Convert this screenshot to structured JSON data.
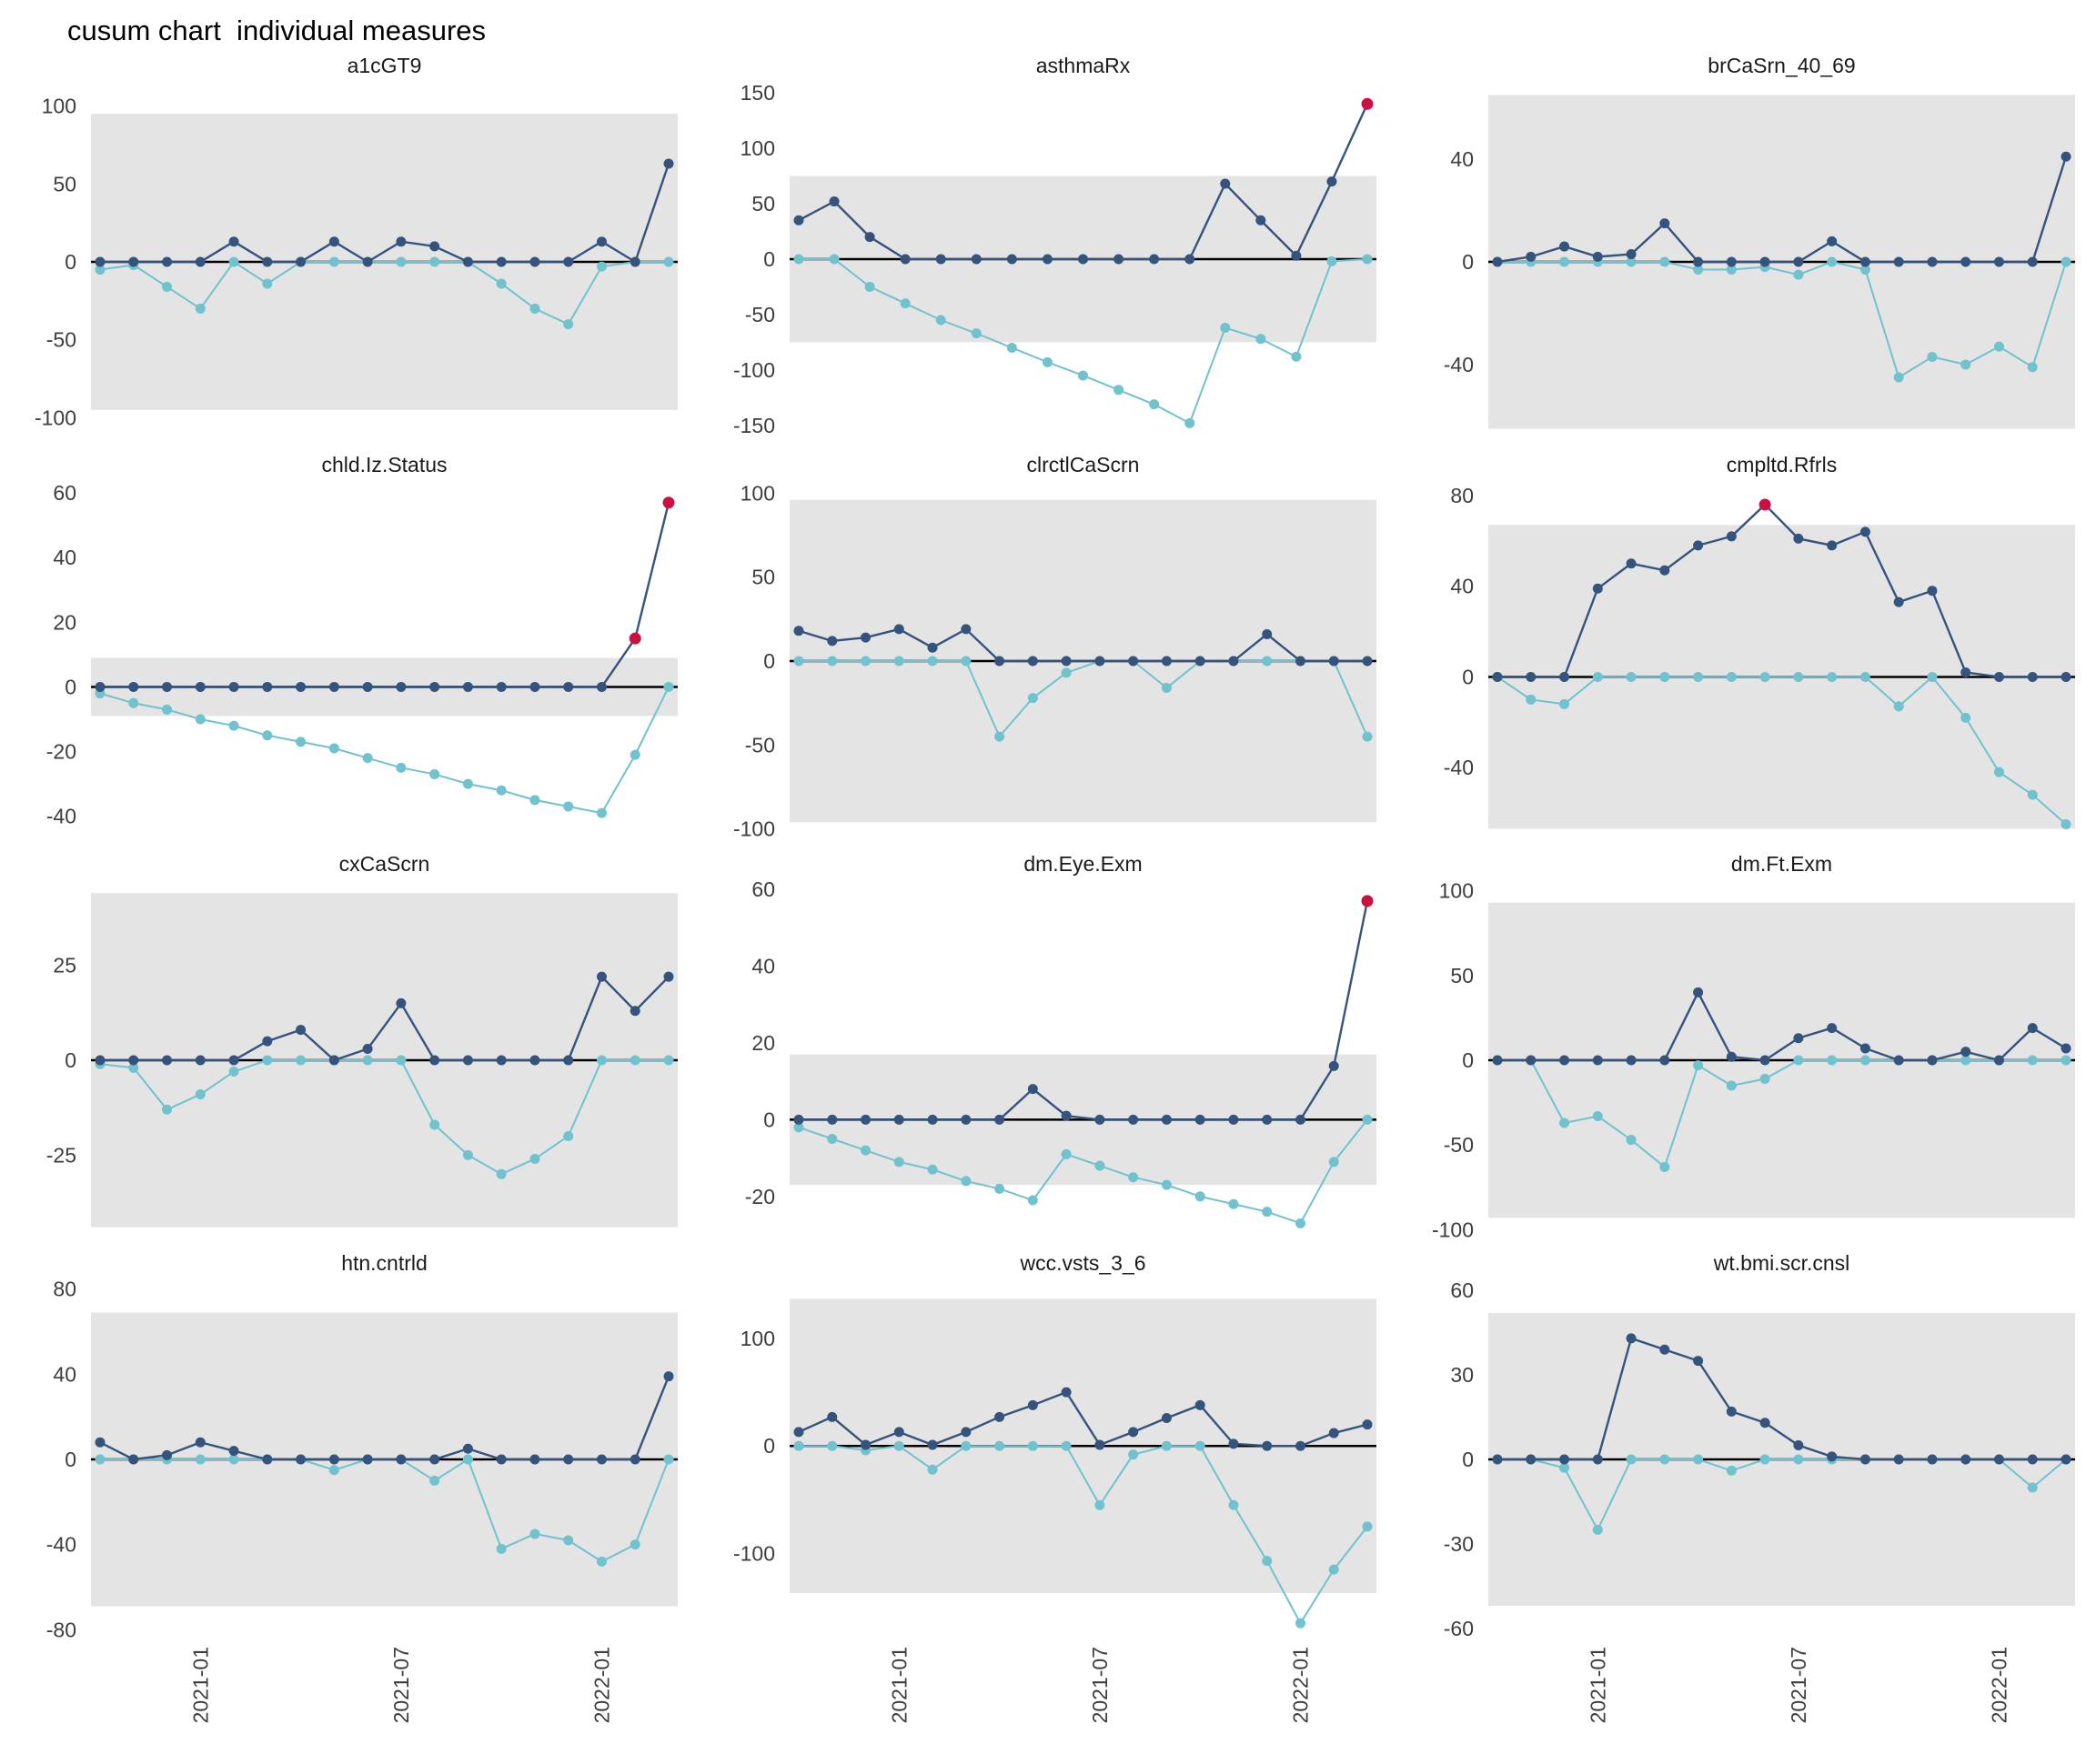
{
  "page_title": "cusum chart  individual measures",
  "x_axis": {
    "labels": [
      "2021-01",
      "2021-07",
      "2022-01"
    ]
  },
  "colors": {
    "upper_series": "#34537D",
    "lower_series": "#6FC2CE",
    "signal_point": "#CB1141",
    "band": "#E4E4E4",
    "zero_line": "#000000",
    "tick_text": "#3d3d3d",
    "title_text": "#1a1a1a"
  },
  "chart_data": [
    {
      "type": "line",
      "title": "a1cGT9",
      "ylim": [
        -112,
        112
      ],
      "yticks": [
        100,
        50,
        0,
        -50,
        -100
      ],
      "band": [
        -95,
        95
      ],
      "tick_indices": [
        3,
        9,
        15
      ],
      "series": [
        {
          "name": "upper cusum",
          "values": [
            0,
            0,
            0,
            0,
            13,
            0,
            0,
            13,
            0,
            13,
            10,
            0,
            0,
            0,
            0,
            13,
            0,
            63
          ]
        },
        {
          "name": "lower cusum",
          "values": [
            -5,
            -2,
            -16,
            -30,
            0,
            -14,
            0,
            0,
            0,
            0,
            0,
            0,
            -14,
            -30,
            -40,
            -3,
            0,
            0
          ]
        }
      ],
      "signals": []
    },
    {
      "type": "line",
      "title": "asthmaRx",
      "ylim": [
        -160,
        155
      ],
      "yticks": [
        150,
        100,
        50,
        0,
        -50,
        -100,
        -150
      ],
      "band": [
        -75,
        75
      ],
      "tick_indices": [
        2,
        8,
        14
      ],
      "series": [
        {
          "name": "upper cusum",
          "values": [
            35,
            52,
            20,
            0,
            0,
            0,
            0,
            0,
            0,
            0,
            0,
            0,
            68,
            35,
            3,
            70,
            140
          ]
        },
        {
          "name": "lower cusum",
          "values": [
            0,
            0,
            -25,
            -40,
            -55,
            -67,
            -80,
            -93,
            -105,
            -118,
            -131,
            -148,
            -62,
            -72,
            -88,
            -2,
            0
          ]
        }
      ],
      "signals": [
        16
      ]
    },
    {
      "type": "line",
      "title": "brCaSrn_40_69",
      "ylim": [
        -68,
        68
      ],
      "yticks": [
        40,
        0,
        -40
      ],
      "band": [
        -65,
        65
      ],
      "tick_indices": [
        3,
        9,
        15
      ],
      "series": [
        {
          "name": "upper cusum",
          "values": [
            0,
            2,
            6,
            2,
            3,
            15,
            0,
            0,
            0,
            0,
            8,
            0,
            0,
            0,
            0,
            0,
            0,
            41
          ]
        },
        {
          "name": "lower cusum",
          "values": [
            0,
            0,
            0,
            0,
            0,
            0,
            -3,
            -3,
            -2,
            -5,
            0,
            -3,
            -45,
            -37,
            -40,
            -33,
            -41,
            0
          ]
        }
      ],
      "signals": []
    },
    {
      "type": "line",
      "title": "chld.Iz.Status",
      "ylim": [
        -46,
        62
      ],
      "yticks": [
        60,
        40,
        20,
        0,
        -20,
        -40
      ],
      "band": [
        -9,
        9
      ],
      "tick_indices": [
        3,
        9,
        15
      ],
      "series": [
        {
          "name": "upper cusum",
          "values": [
            0,
            0,
            0,
            0,
            0,
            0,
            0,
            0,
            0,
            0,
            0,
            0,
            0,
            0,
            0,
            0,
            15,
            57
          ]
        },
        {
          "name": "lower cusum",
          "values": [
            -2,
            -5,
            -7,
            -10,
            -12,
            -15,
            -17,
            -19,
            -22,
            -25,
            -27,
            -30,
            -32,
            -35,
            -37,
            -39,
            -21,
            0
          ]
        }
      ],
      "signals": [
        16,
        17
      ]
    },
    {
      "type": "line",
      "title": "clrctlCaScrn",
      "ylim": [
        -104,
        104
      ],
      "yticks": [
        100,
        50,
        0,
        -50,
        -100
      ],
      "band": [
        -96,
        96
      ],
      "tick_indices": [
        3,
        9,
        15
      ],
      "series": [
        {
          "name": "upper cusum",
          "values": [
            18,
            12,
            14,
            19,
            8,
            19,
            0,
            0,
            0,
            0,
            0,
            0,
            0,
            0,
            16,
            0,
            0,
            0
          ]
        },
        {
          "name": "lower cusum",
          "values": [
            0,
            0,
            0,
            0,
            0,
            0,
            -45,
            -22,
            -7,
            0,
            0,
            -16,
            0,
            0,
            0,
            0,
            0,
            -45
          ]
        }
      ],
      "signals": []
    },
    {
      "type": "line",
      "title": "cmpltd.Rfrls",
      "ylim": [
        -70,
        84
      ],
      "yticks": [
        80,
        40,
        0,
        -40
      ],
      "band": [
        -67,
        67
      ],
      "tick_indices": [
        3,
        9,
        15
      ],
      "series": [
        {
          "name": "upper cusum",
          "values": [
            0,
            0,
            0,
            39,
            50,
            47,
            58,
            62,
            76,
            61,
            58,
            64,
            33,
            38,
            2,
            0,
            0,
            0
          ]
        },
        {
          "name": "lower cusum",
          "values": [
            0,
            -10,
            -12,
            0,
            0,
            0,
            0,
            0,
            0,
            0,
            0,
            0,
            -13,
            0,
            -18,
            -42,
            -52,
            -65
          ]
        }
      ],
      "signals": [
        8
      ]
    },
    {
      "type": "line",
      "title": "cxCaScrn",
      "ylim": [
        -46,
        46
      ],
      "yticks": [
        25,
        0,
        -25
      ],
      "band": [
        -44,
        44
      ],
      "tick_indices": [
        3,
        9,
        15
      ],
      "series": [
        {
          "name": "upper cusum",
          "values": [
            0,
            0,
            0,
            0,
            0,
            5,
            8,
            0,
            3,
            15,
            0,
            0,
            0,
            0,
            0,
            22,
            13,
            22
          ]
        },
        {
          "name": "lower cusum",
          "values": [
            -1,
            -2,
            -13,
            -9,
            -3,
            0,
            0,
            0,
            0,
            0,
            -17,
            -25,
            -30,
            -26,
            -20,
            0,
            0,
            0
          ]
        }
      ],
      "signals": []
    },
    {
      "type": "line",
      "title": "dm.Eye.Exm",
      "ylim": [
        -30,
        61
      ],
      "yticks": [
        60,
        40,
        20,
        0,
        -20
      ],
      "band": [
        -17,
        17
      ],
      "tick_indices": [
        3,
        9,
        15
      ],
      "series": [
        {
          "name": "upper cusum",
          "values": [
            0,
            0,
            0,
            0,
            0,
            0,
            0,
            8,
            1,
            0,
            0,
            0,
            0,
            0,
            0,
            0,
            14,
            57
          ]
        },
        {
          "name": "lower cusum",
          "values": [
            -2,
            -5,
            -8,
            -11,
            -13,
            -16,
            -18,
            -21,
            -9,
            -12,
            -15,
            -17,
            -20,
            -22,
            -24,
            -27,
            -11,
            0
          ]
        }
      ],
      "signals": [
        17
      ]
    },
    {
      "type": "line",
      "title": "dm.Ft.Exm",
      "ylim": [
        -103,
        103
      ],
      "yticks": [
        100,
        50,
        0,
        -50,
        -100
      ],
      "band": [
        -93,
        93
      ],
      "tick_indices": [
        3,
        9,
        15
      ],
      "series": [
        {
          "name": "upper cusum",
          "values": [
            0,
            0,
            0,
            0,
            0,
            0,
            40,
            2,
            0,
            13,
            19,
            7,
            0,
            0,
            5,
            0,
            19,
            7
          ]
        },
        {
          "name": "lower cusum",
          "values": [
            0,
            0,
            -37,
            -33,
            -47,
            -63,
            -3,
            -15,
            -11,
            0,
            0,
            0,
            0,
            0,
            0,
            0,
            0,
            0
          ]
        }
      ],
      "signals": []
    },
    {
      "type": "line",
      "title": "htn.cntrld",
      "ylim": [
        -82,
        82
      ],
      "yticks": [
        80,
        40,
        0,
        -40,
        -80
      ],
      "band": [
        -69,
        69
      ],
      "tick_indices": [
        3,
        9,
        15
      ],
      "series": [
        {
          "name": "upper cusum",
          "values": [
            8,
            0,
            2,
            8,
            4,
            0,
            0,
            0,
            0,
            0,
            0,
            5,
            0,
            0,
            0,
            0,
            0,
            39
          ]
        },
        {
          "name": "lower cusum",
          "values": [
            0,
            0,
            0,
            0,
            0,
            0,
            0,
            -5,
            0,
            0,
            -10,
            0,
            -42,
            -35,
            -38,
            -48,
            -40,
            0
          ]
        }
      ],
      "signals": []
    },
    {
      "type": "line",
      "title": "wcc.vsts_3_6",
      "ylim": [
        -175,
        150
      ],
      "yticks": [
        100,
        0,
        -100
      ],
      "band": [
        -137,
        137
      ],
      "tick_indices": [
        3,
        9,
        15
      ],
      "series": [
        {
          "name": "upper cusum",
          "values": [
            13,
            27,
            1,
            13,
            1,
            13,
            27,
            38,
            50,
            1,
            13,
            26,
            38,
            2,
            0,
            0,
            12,
            20
          ]
        },
        {
          "name": "lower cusum",
          "values": [
            0,
            0,
            -4,
            0,
            -22,
            0,
            0,
            0,
            0,
            -55,
            -8,
            0,
            0,
            -55,
            -107,
            -165,
            -115,
            -75
          ]
        }
      ],
      "signals": []
    },
    {
      "type": "line",
      "title": "wt.bmi.scr.cnsl",
      "ylim": [
        -62,
        62
      ],
      "yticks": [
        60,
        30,
        0,
        -30,
        -60
      ],
      "band": [
        -52,
        52
      ],
      "tick_indices": [
        3,
        9,
        15
      ],
      "series": [
        {
          "name": "upper cusum",
          "values": [
            0,
            0,
            0,
            0,
            43,
            39,
            35,
            17,
            13,
            5,
            1,
            0,
            0,
            0,
            0,
            0,
            0,
            0
          ]
        },
        {
          "name": "lower cusum",
          "values": [
            0,
            0,
            -3,
            -25,
            0,
            0,
            0,
            -4,
            0,
            0,
            0,
            0,
            0,
            0,
            0,
            0,
            -10,
            0
          ]
        }
      ],
      "signals": []
    }
  ]
}
